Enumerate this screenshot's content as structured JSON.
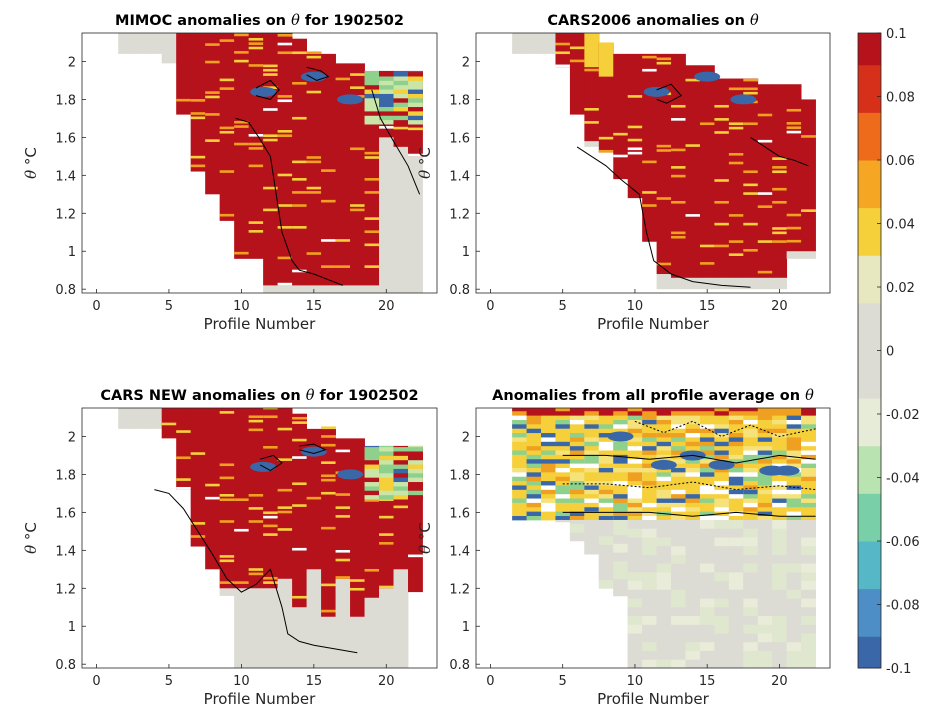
{
  "chart_data": [
    {
      "type": "heatmap",
      "title_prefix": "MIMOC anomalies on ",
      "title_symbol": "θ",
      "title_suffix": "  for 1902502",
      "xlabel": "Profile Number",
      "ylabel_symbol": "θ",
      "ylabel_units": " °C",
      "xlim": [
        -1,
        23.5
      ],
      "ylim": [
        0.78,
        2.15
      ],
      "xticks": [
        "0",
        "5",
        "10",
        "15",
        "20"
      ],
      "yticks": [
        "0.8",
        "1",
        "1.2",
        "1.4",
        "1.6",
        "1.8",
        "2"
      ],
      "profiles": [
        {
          "x": 2,
          "top": 2.15,
          "bottom": 2.04
        },
        {
          "x": 3,
          "top": 2.15,
          "bottom": 2.04
        },
        {
          "x": 4,
          "top": 2.15,
          "bottom": 2.04
        },
        {
          "x": 5,
          "top": 2.15,
          "bottom": 1.99
        },
        {
          "x": 6,
          "top": 2.15,
          "bottom": 1.72
        },
        {
          "x": 7,
          "top": 2.15,
          "bottom": 1.42
        },
        {
          "x": 8,
          "top": 2.15,
          "bottom": 1.3
        },
        {
          "x": 9,
          "top": 2.15,
          "bottom": 1.16
        },
        {
          "x": 10,
          "top": 2.15,
          "bottom": 0.96
        },
        {
          "x": 11,
          "top": 2.15,
          "bottom": 0.96
        },
        {
          "x": 12,
          "top": 2.15,
          "bottom": 0.78
        },
        {
          "x": 13,
          "top": 2.15,
          "bottom": 0.78
        },
        {
          "x": 14,
          "top": 2.12,
          "bottom": 0.78
        },
        {
          "x": 15,
          "top": 2.04,
          "bottom": 0.78
        },
        {
          "x": 16,
          "top": 2.04,
          "bottom": 0.78
        },
        {
          "x": 17,
          "top": 1.99,
          "bottom": 0.78
        },
        {
          "x": 18,
          "top": 1.99,
          "bottom": 0.78
        },
        {
          "x": 19,
          "top": 1.95,
          "bottom": 0.78
        },
        {
          "x": 20,
          "top": 1.95,
          "bottom": 0.78
        },
        {
          "x": 21,
          "top": 1.95,
          "bottom": 0.78
        },
        {
          "x": 22,
          "top": 1.95,
          "bottom": 0.78
        }
      ],
      "level": [
        0.1,
        0.1,
        0.1,
        0.1,
        0.1,
        0.1,
        0.1,
        0.1,
        0.1,
        0.1,
        0.1,
        0.1,
        0.1,
        0.1,
        0.1,
        0.1,
        0.1,
        0.1,
        0.1,
        0.1,
        0.1
      ],
      "red_above": [
        2.15,
        2.15,
        2.15,
        2.15,
        1.72,
        1.42,
        1.3,
        1.16,
        0.96,
        0.96,
        0.82,
        0.82,
        0.82,
        0.82,
        0.82,
        0.82,
        0.82,
        0.82,
        1.6,
        1.55,
        1.5
      ],
      "red_floor": 1.22,
      "contours": [
        [
          [
            9.6,
            1.7
          ],
          [
            10.5,
            1.68
          ],
          [
            11.2,
            1.6
          ],
          [
            12,
            1.5
          ],
          [
            12.4,
            1.3
          ],
          [
            12.8,
            1.1
          ],
          [
            13.5,
            0.95
          ],
          [
            14,
            0.9
          ],
          [
            15,
            0.88
          ],
          [
            16,
            0.85
          ],
          [
            17,
            0.82
          ]
        ],
        [
          [
            19,
            1.85
          ],
          [
            19.6,
            1.7
          ],
          [
            20.5,
            1.58
          ],
          [
            21.5,
            1.45
          ],
          [
            22.3,
            1.3
          ]
        ],
        [
          [
            11,
            1.86
          ],
          [
            12,
            1.9
          ],
          [
            12.6,
            1.85
          ],
          [
            12,
            1.8
          ],
          [
            11,
            1.82
          ]
        ],
        [
          [
            14.5,
            1.97
          ],
          [
            15.5,
            1.95
          ],
          [
            16,
            1.92
          ],
          [
            15.2,
            1.9
          ],
          [
            14.5,
            1.93
          ]
        ]
      ],
      "mark_colors": {
        "red": "#b5121b",
        "neutral": "#dcdcd4",
        "blue": "#3a67a8",
        "yellow": "#f5d03a",
        "orange": "#f0a020",
        "green": "#8ed18c"
      }
    },
    {
      "type": "heatmap",
      "title_prefix": "CARS2006 anomalies on ",
      "title_symbol": "θ",
      "title_suffix": "",
      "xlabel": "Profile Number",
      "ylabel_symbol": "θ",
      "ylabel_units": " °C",
      "xlim": [
        -1,
        23.5
      ],
      "ylim": [
        0.78,
        2.15
      ],
      "xticks": [
        "0",
        "5",
        "10",
        "15",
        "20"
      ],
      "yticks": [
        "0.8",
        "1",
        "1.2",
        "1.4",
        "1.6",
        "1.8",
        "2"
      ],
      "profiles": [
        {
          "x": 2,
          "top": 2.15,
          "bottom": 2.04
        },
        {
          "x": 3,
          "top": 2.15,
          "bottom": 2.04
        },
        {
          "x": 4,
          "top": 2.15,
          "bottom": 2.04
        },
        {
          "x": 5,
          "top": 2.15,
          "bottom": 1.97
        },
        {
          "x": 6,
          "top": 2.15,
          "bottom": 1.72
        },
        {
          "x": 7,
          "top": 2.15,
          "bottom": 1.55
        },
        {
          "x": 8,
          "top": 2.1,
          "bottom": 1.52
        },
        {
          "x": 9,
          "top": 2.04,
          "bottom": 1.38
        },
        {
          "x": 10,
          "top": 2.04,
          "bottom": 1.28
        },
        {
          "x": 11,
          "top": 2.04,
          "bottom": 1.05
        },
        {
          "x": 12,
          "top": 2.04,
          "bottom": 0.8
        },
        {
          "x": 13,
          "top": 2.04,
          "bottom": 0.8
        },
        {
          "x": 14,
          "top": 1.98,
          "bottom": 0.8
        },
        {
          "x": 15,
          "top": 1.98,
          "bottom": 0.8
        },
        {
          "x": 16,
          "top": 1.91,
          "bottom": 0.8
        },
        {
          "x": 17,
          "top": 1.91,
          "bottom": 0.8
        },
        {
          "x": 18,
          "top": 1.91,
          "bottom": 0.8
        },
        {
          "x": 19,
          "top": 1.88,
          "bottom": 0.8
        },
        {
          "x": 20,
          "top": 1.88,
          "bottom": 0.8
        },
        {
          "x": 21,
          "top": 1.88,
          "bottom": 0.96
        },
        {
          "x": 22,
          "top": 1.8,
          "bottom": 0.96
        }
      ],
      "level": [
        0.1,
        0.1,
        0.1,
        0.1,
        0.1,
        0.1,
        0.1,
        0.1,
        0.1,
        0.1,
        0.1,
        0.1,
        0.1,
        0.1,
        0.1,
        0.1,
        0.1,
        0.1,
        0.1,
        0.1,
        0.1
      ],
      "red_above": [
        2.15,
        2.15,
        2.15,
        1.97,
        1.72,
        1.58,
        1.52,
        1.38,
        1.28,
        1.05,
        0.88,
        0.86,
        0.86,
        0.86,
        0.86,
        0.86,
        0.86,
        0.86,
        0.86,
        1.0,
        1.0
      ],
      "red_floor": 1.0,
      "contours": [
        [
          [
            6,
            1.55
          ],
          [
            7,
            1.5
          ],
          [
            8,
            1.45
          ],
          [
            9,
            1.38
          ],
          [
            10.3,
            1.3
          ],
          [
            10.8,
            1.1
          ],
          [
            11.3,
            0.95
          ],
          [
            12.5,
            0.88
          ],
          [
            14,
            0.84
          ],
          [
            16,
            0.82
          ],
          [
            18,
            0.81
          ]
        ],
        [
          [
            11.5,
            1.85
          ],
          [
            12.5,
            1.88
          ],
          [
            13.2,
            1.82
          ],
          [
            12.2,
            1.78
          ],
          [
            11.5,
            1.8
          ]
        ],
        [
          [
            18,
            1.6
          ],
          [
            19,
            1.55
          ],
          [
            20,
            1.5
          ],
          [
            21,
            1.48
          ],
          [
            22,
            1.45
          ]
        ]
      ],
      "mark_colors": {
        "red": "#b5121b",
        "neutral": "#dcdcd4",
        "blue": "#3a67a8",
        "yellow": "#f5d03a",
        "orange": "#f0a020",
        "green": "#8ed18c"
      }
    },
    {
      "type": "heatmap",
      "title_prefix": "CARS NEW anomalies on ",
      "title_symbol": "θ",
      "title_suffix": " for 1902502",
      "xlabel": "Profile Number",
      "ylabel_symbol": "θ",
      "ylabel_units": " °C",
      "xlim": [
        -1,
        23.5
      ],
      "ylim": [
        0.78,
        2.15
      ],
      "xticks": [
        "0",
        "5",
        "10",
        "15",
        "20"
      ],
      "yticks": [
        "0.8",
        "1",
        "1.2",
        "1.4",
        "1.6",
        "1.8",
        "2"
      ],
      "profiles": [
        {
          "x": 2,
          "top": 2.15,
          "bottom": 2.04
        },
        {
          "x": 3,
          "top": 2.15,
          "bottom": 2.04
        },
        {
          "x": 4,
          "top": 2.15,
          "bottom": 2.04
        },
        {
          "x": 5,
          "top": 2.15,
          "bottom": 1.99
        },
        {
          "x": 6,
          "top": 2.15,
          "bottom": 1.72
        },
        {
          "x": 7,
          "top": 2.15,
          "bottom": 1.42
        },
        {
          "x": 8,
          "top": 2.15,
          "bottom": 1.3
        },
        {
          "x": 9,
          "top": 2.15,
          "bottom": 1.16
        },
        {
          "x": 10,
          "top": 2.15,
          "bottom": 0.78
        },
        {
          "x": 11,
          "top": 2.15,
          "bottom": 0.78
        },
        {
          "x": 12,
          "top": 2.15,
          "bottom": 0.78
        },
        {
          "x": 13,
          "top": 2.15,
          "bottom": 0.78
        },
        {
          "x": 14,
          "top": 2.12,
          "bottom": 0.78
        },
        {
          "x": 15,
          "top": 2.04,
          "bottom": 0.78
        },
        {
          "x": 16,
          "top": 2.04,
          "bottom": 0.78
        },
        {
          "x": 17,
          "top": 1.99,
          "bottom": 0.78
        },
        {
          "x": 18,
          "top": 1.99,
          "bottom": 0.78
        },
        {
          "x": 19,
          "top": 1.95,
          "bottom": 0.78
        },
        {
          "x": 20,
          "top": 1.95,
          "bottom": 0.78
        },
        {
          "x": 21,
          "top": 1.95,
          "bottom": 0.78
        },
        {
          "x": 22,
          "top": 1.95,
          "bottom": 1.18
        }
      ],
      "level": [
        0.1,
        0.1,
        0.1,
        0.1,
        0.1,
        0.1,
        0.1,
        0.1,
        0.1,
        0.1,
        0.1,
        0.1,
        0.1,
        0.1,
        0.1,
        0.1,
        0.1,
        0.1,
        0.1,
        0.1,
        0.1
      ],
      "red_above": [
        2.15,
        2.15,
        2.15,
        1.99,
        1.72,
        1.42,
        1.3,
        1.2,
        1.2,
        1.2,
        1.2,
        1.25,
        1.1,
        1.3,
        1.05,
        1.25,
        1.05,
        1.15,
        1.2,
        1.3,
        1.18
      ],
      "red_floor": 1.15,
      "contours": [
        [
          [
            4,
            1.72
          ],
          [
            5,
            1.7
          ],
          [
            6,
            1.62
          ],
          [
            7,
            1.5
          ],
          [
            8,
            1.38
          ],
          [
            9,
            1.25
          ],
          [
            10,
            1.18
          ],
          [
            11,
            1.22
          ],
          [
            12,
            1.3
          ],
          [
            12.8,
            1.1
          ],
          [
            13.2,
            0.96
          ],
          [
            14,
            0.92
          ],
          [
            15,
            0.9
          ],
          [
            16.5,
            0.88
          ],
          [
            18,
            0.86
          ]
        ],
        [
          [
            11.3,
            1.88
          ],
          [
            12.2,
            1.9
          ],
          [
            12.8,
            1.86
          ],
          [
            12,
            1.82
          ],
          [
            11.3,
            1.85
          ]
        ],
        [
          [
            14,
            1.95
          ],
          [
            15,
            1.96
          ],
          [
            15.8,
            1.93
          ],
          [
            15,
            1.91
          ],
          [
            14,
            1.93
          ]
        ]
      ],
      "mark_colors": {
        "red": "#b5121b",
        "neutral": "#dcdcd4",
        "blue": "#3a67a8",
        "yellow": "#f5d03a",
        "orange": "#f0a020",
        "green": "#8ed18c"
      }
    },
    {
      "type": "heatmap",
      "title_prefix": "Anomalies from all profile average on ",
      "title_symbol": "θ",
      "title_suffix": "",
      "xlabel": "Profile Number",
      "ylabel_symbol": "θ",
      "ylabel_units": " °C",
      "xlim": [
        -1,
        23.5
      ],
      "ylim": [
        0.78,
        2.15
      ],
      "xticks": [
        "0",
        "5",
        "10",
        "15",
        "20"
      ],
      "yticks": [
        "0.8",
        "1",
        "1.2",
        "1.4",
        "1.6",
        "1.8",
        "2"
      ],
      "profiles": [
        {
          "x": 2,
          "top": 2.15,
          "bottom": 2.04
        },
        {
          "x": 3,
          "top": 2.15,
          "bottom": 2.04
        },
        {
          "x": 4,
          "top": 2.15,
          "bottom": 2.04
        },
        {
          "x": 5,
          "top": 2.15,
          "bottom": 1.55
        },
        {
          "x": 6,
          "top": 2.15,
          "bottom": 1.45
        },
        {
          "x": 7,
          "top": 2.15,
          "bottom": 1.38
        },
        {
          "x": 8,
          "top": 2.15,
          "bottom": 1.2
        },
        {
          "x": 9,
          "top": 2.15,
          "bottom": 1.16
        },
        {
          "x": 10,
          "top": 2.15,
          "bottom": 0.78
        },
        {
          "x": 11,
          "top": 2.15,
          "bottom": 0.78
        },
        {
          "x": 12,
          "top": 2.15,
          "bottom": 0.78
        },
        {
          "x": 13,
          "top": 2.15,
          "bottom": 0.78
        },
        {
          "x": 14,
          "top": 2.15,
          "bottom": 0.78
        },
        {
          "x": 15,
          "top": 2.15,
          "bottom": 0.78
        },
        {
          "x": 16,
          "top": 2.15,
          "bottom": 0.78
        },
        {
          "x": 17,
          "top": 2.15,
          "bottom": 0.78
        },
        {
          "x": 18,
          "top": 2.15,
          "bottom": 0.78
        },
        {
          "x": 19,
          "top": 2.15,
          "bottom": 0.78
        },
        {
          "x": 20,
          "top": 2.15,
          "bottom": 0.78
        },
        {
          "x": 21,
          "top": 2.15,
          "bottom": 0.78
        },
        {
          "x": 22,
          "top": 2.15,
          "bottom": 0.78
        }
      ],
      "level": [
        0.1,
        0.1,
        0.1,
        0.1,
        0.1,
        0.1,
        0.1,
        0.1,
        0.1,
        0.1,
        0.1,
        0.1,
        0.1,
        0.1,
        0.1,
        0.1,
        0.1,
        0.1,
        0.1,
        0.1,
        0.1
      ],
      "red_above": [
        2.1,
        2.1,
        2.1,
        2.1,
        2.1,
        2.1,
        2.1,
        2.1,
        2.1,
        2.1,
        2.1,
        2.1,
        2.1,
        2.1,
        2.1,
        2.1,
        2.1,
        2.1,
        2.1,
        2.1,
        2.1
      ],
      "red_floor": 2.1,
      "warm_band": [
        1.56,
        2.1
      ],
      "contours": [
        [
          [
            5,
            1.9
          ],
          [
            8,
            1.9
          ],
          [
            11,
            1.88
          ],
          [
            14,
            1.9
          ],
          [
            17,
            1.86
          ],
          [
            20,
            1.9
          ],
          [
            22.5,
            1.88
          ]
        ],
        [
          [
            5,
            1.75
          ],
          [
            8,
            1.75
          ],
          [
            11,
            1.73
          ],
          [
            14,
            1.76
          ],
          [
            17,
            1.72
          ],
          [
            20,
            1.74
          ],
          [
            22.5,
            1.72
          ]
        ],
        [
          [
            5,
            1.6
          ],
          [
            8,
            1.6
          ],
          [
            11,
            1.6
          ],
          [
            14,
            1.58
          ],
          [
            17,
            1.6
          ],
          [
            20,
            1.58
          ],
          [
            22.5,
            1.58
          ]
        ],
        [
          [
            10,
            2.08
          ],
          [
            12,
            2.02
          ],
          [
            14,
            2.08
          ],
          [
            16,
            2.0
          ],
          [
            18,
            2.06
          ],
          [
            20,
            2.0
          ],
          [
            22.5,
            2.04
          ]
        ]
      ],
      "mark_colors": {
        "red": "#b5121b",
        "neutral": "#dcdcd4",
        "blue": "#3a67a8",
        "yellow": "#f5d03a",
        "orange": "#f0a020",
        "green": "#8ed18c"
      }
    }
  ],
  "colorbar": {
    "ticks": [
      "0.1",
      "0.08",
      "0.06",
      "0.04",
      "0.02",
      "0",
      "-0.02",
      "-0.04",
      "-0.06",
      "-0.08",
      "-0.1"
    ],
    "range": [
      -0.1,
      0.1
    ],
    "stops": [
      "#3a67a8",
      "#4d8ec6",
      "#56b8c7",
      "#78cfa8",
      "#b9e3b0",
      "#e6ecd8",
      "#dcdcd4",
      "#dcdcd4",
      "#e8e8c0",
      "#f5d03a",
      "#f5a623",
      "#ee6b1c",
      "#d6301a",
      "#b5121b"
    ]
  }
}
